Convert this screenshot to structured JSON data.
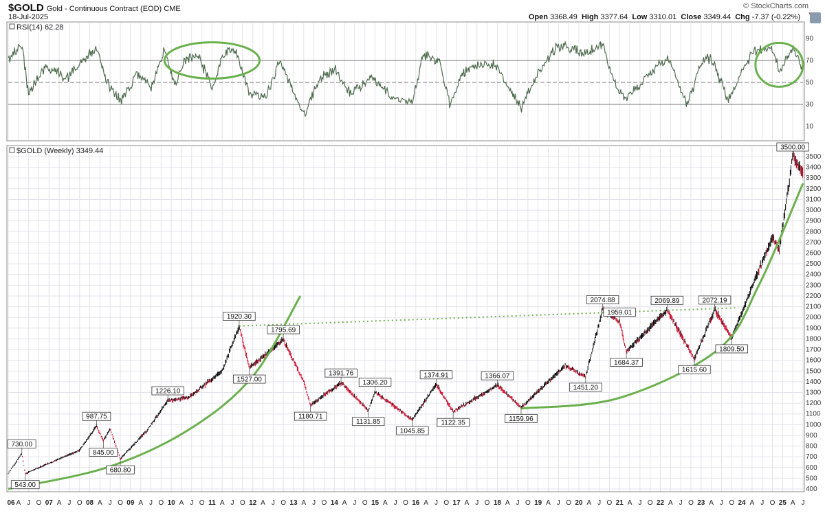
{
  "header": {
    "symbol": "$GOLD",
    "name": "Gold - Continuous Contract (EOD)",
    "exchange": "CME",
    "date": "18-Jul-2025",
    "brand": "© StockCharts.com",
    "open_label": "Open",
    "open": "3368.49",
    "high_label": "High",
    "high": "3377.64",
    "low_label": "Low",
    "low": "3310.01",
    "close_label": "Close",
    "close": "3349.44",
    "chg_label": "Chg",
    "chg": "-7.37 (-0.22%)",
    "chg_icon": "triangle-down-icon",
    "trash_icon": "trash-icon"
  },
  "rsi_panel": {
    "label": "RSI(14) 62.28",
    "overbought": 70,
    "oversold": 30,
    "midline": 50,
    "ticks": [
      90,
      70,
      50,
      30,
      10
    ]
  },
  "price_panel": {
    "label": "$GOLD (Weekly) 3349.44",
    "ticks": [
      3500,
      3400,
      3300,
      3200,
      3100,
      3000,
      2900,
      2800,
      2700,
      2600,
      2500,
      2400,
      2300,
      2200,
      2100,
      2000,
      1900,
      1800,
      1700,
      1600,
      1500,
      1400,
      1300,
      1200,
      1100,
      1000,
      900,
      800,
      700,
      600,
      500,
      400
    ]
  },
  "colors": {
    "bar": "#000000",
    "down": "#cc0022",
    "annotation": "#6ab04c",
    "rsi_line": "#4e6b4e",
    "grid": "#e3e3ec"
  },
  "chart_data": {
    "type": "line",
    "title": "$GOLD (Weekly)",
    "x_start": "2006-01",
    "x_end": "2025-07",
    "x_labels": [
      "06",
      "A",
      "J",
      "O",
      "07",
      "A",
      "J",
      "O",
      "08",
      "A",
      "J",
      "O",
      "09",
      "A",
      "J",
      "O",
      "10",
      "A",
      "J",
      "O",
      "11",
      "A",
      "J",
      "O",
      "12",
      "A",
      "J",
      "O",
      "13",
      "A",
      "J",
      "O",
      "14",
      "A",
      "J",
      "O",
      "15",
      "A",
      "J",
      "O",
      "16",
      "A",
      "J",
      "O",
      "17",
      "A",
      "J",
      "O",
      "18",
      "A",
      "J",
      "O",
      "19",
      "A",
      "J",
      "O",
      "20",
      "A",
      "J",
      "O",
      "21",
      "A",
      "J",
      "O",
      "22",
      "A",
      "J",
      "O",
      "23",
      "A",
      "J",
      "O",
      "24",
      "A",
      "J",
      "O",
      "25",
      "A",
      "J"
    ],
    "price_series": [
      {
        "date": "2006-01",
        "value": 545
      },
      {
        "date": "2006-05",
        "value": 730
      },
      {
        "date": "2006-06",
        "value": 543
      },
      {
        "date": "2007-01",
        "value": 640
      },
      {
        "date": "2007-10",
        "value": 760
      },
      {
        "date": "2008-03",
        "value": 987.75
      },
      {
        "date": "2008-05",
        "value": 845
      },
      {
        "date": "2008-07",
        "value": 960
      },
      {
        "date": "2008-10",
        "value": 680.8
      },
      {
        "date": "2009-06",
        "value": 950
      },
      {
        "date": "2009-12",
        "value": 1226.1
      },
      {
        "date": "2010-06",
        "value": 1250
      },
      {
        "date": "2011-04",
        "value": 1500
      },
      {
        "date": "2011-09",
        "value": 1920.3
      },
      {
        "date": "2011-12",
        "value": 1527
      },
      {
        "date": "2012-10",
        "value": 1795.69
      },
      {
        "date": "2013-04",
        "value": 1400
      },
      {
        "date": "2013-06",
        "value": 1180.71
      },
      {
        "date": "2014-03",
        "value": 1391.76
      },
      {
        "date": "2014-11",
        "value": 1131.85
      },
      {
        "date": "2015-01",
        "value": 1306.2
      },
      {
        "date": "2015-12",
        "value": 1045.85
      },
      {
        "date": "2016-07",
        "value": 1374.91
      },
      {
        "date": "2016-12",
        "value": 1122.35
      },
      {
        "date": "2018-01",
        "value": 1366.07
      },
      {
        "date": "2018-08",
        "value": 1159.96
      },
      {
        "date": "2019-09",
        "value": 1550
      },
      {
        "date": "2020-03",
        "value": 1451.2
      },
      {
        "date": "2020-08",
        "value": 2074.88
      },
      {
        "date": "2021-01",
        "value": 1959.01
      },
      {
        "date": "2021-03",
        "value": 1684.37
      },
      {
        "date": "2022-03",
        "value": 2069.89
      },
      {
        "date": "2022-11",
        "value": 1615.6
      },
      {
        "date": "2023-05",
        "value": 2072.19
      },
      {
        "date": "2023-10",
        "value": 1809.5
      },
      {
        "date": "2024-03",
        "value": 2200
      },
      {
        "date": "2024-10",
        "value": 2750
      },
      {
        "date": "2024-12",
        "value": 2620
      },
      {
        "date": "2025-04",
        "value": 3500
      },
      {
        "date": "2025-07",
        "value": 3349.44
      }
    ],
    "peak_labels": [
      {
        "date": "2006-05",
        "value": 730,
        "label": "730.00",
        "pos": "above"
      },
      {
        "date": "2006-06",
        "value": 543,
        "label": "543.00",
        "pos": "below"
      },
      {
        "date": "2008-03",
        "value": 987.75,
        "label": "987.75",
        "pos": "above"
      },
      {
        "date": "2008-05",
        "value": 845,
        "label": "845.00",
        "pos": "below"
      },
      {
        "date": "2008-10",
        "value": 680.8,
        "label": "680.80",
        "pos": "below"
      },
      {
        "date": "2009-12",
        "value": 1226.1,
        "label": "1226.10",
        "pos": "above"
      },
      {
        "date": "2011-09",
        "value": 1920.3,
        "label": "1920.30",
        "pos": "above"
      },
      {
        "date": "2011-12",
        "value": 1527,
        "label": "1527.00",
        "pos": "below"
      },
      {
        "date": "2012-10",
        "value": 1795.69,
        "label": "1795.69",
        "pos": "above"
      },
      {
        "date": "2013-06",
        "value": 1180.71,
        "label": "1180.71",
        "pos": "below"
      },
      {
        "date": "2014-03",
        "value": 1391.76,
        "label": "1391.76",
        "pos": "above"
      },
      {
        "date": "2014-11",
        "value": 1131.85,
        "label": "1131.85",
        "pos": "below"
      },
      {
        "date": "2015-01",
        "value": 1306.2,
        "label": "1306.20",
        "pos": "above"
      },
      {
        "date": "2015-12",
        "value": 1045.85,
        "label": "1045.85",
        "pos": "below"
      },
      {
        "date": "2016-07",
        "value": 1374.91,
        "label": "1374.91",
        "pos": "above"
      },
      {
        "date": "2016-12",
        "value": 1122.35,
        "label": "1122.35",
        "pos": "below"
      },
      {
        "date": "2018-01",
        "value": 1366.07,
        "label": "1366.07",
        "pos": "above"
      },
      {
        "date": "2018-08",
        "value": 1159.96,
        "label": "1159.96",
        "pos": "below"
      },
      {
        "date": "2020-03",
        "value": 1451.2,
        "label": "1451.20",
        "pos": "below"
      },
      {
        "date": "2020-08",
        "value": 2074.88,
        "label": "2074.88",
        "pos": "above"
      },
      {
        "date": "2021-01",
        "value": 1959.01,
        "label": "1959.01",
        "pos": "above"
      },
      {
        "date": "2021-03",
        "value": 1684.37,
        "label": "1684.37",
        "pos": "below"
      },
      {
        "date": "2022-03",
        "value": 2069.89,
        "label": "2069.89",
        "pos": "above"
      },
      {
        "date": "2022-11",
        "value": 1615.6,
        "label": "1615.60",
        "pos": "below"
      },
      {
        "date": "2023-05",
        "value": 2072.19,
        "label": "2072.19",
        "pos": "above"
      },
      {
        "date": "2023-10",
        "value": 1809.5,
        "label": "1809.50",
        "pos": "below"
      },
      {
        "date": "2025-04",
        "value": 3500,
        "label": "3500.00",
        "pos": "above"
      }
    ],
    "rsi_series": [
      {
        "date": "2006-01",
        "value": 70
      },
      {
        "date": "2006-05",
        "value": 85
      },
      {
        "date": "2006-07",
        "value": 40
      },
      {
        "date": "2006-12",
        "value": 65
      },
      {
        "date": "2007-06",
        "value": 55
      },
      {
        "date": "2007-12",
        "value": 72
      },
      {
        "date": "2008-03",
        "value": 82
      },
      {
        "date": "2008-06",
        "value": 50
      },
      {
        "date": "2008-10",
        "value": 32
      },
      {
        "date": "2009-03",
        "value": 58
      },
      {
        "date": "2009-07",
        "value": 44
      },
      {
        "date": "2009-11",
        "value": 80
      },
      {
        "date": "2010-02",
        "value": 48
      },
      {
        "date": "2010-05",
        "value": 70
      },
      {
        "date": "2010-09",
        "value": 76
      },
      {
        "date": "2011-01",
        "value": 44
      },
      {
        "date": "2011-04",
        "value": 72
      },
      {
        "date": "2011-08",
        "value": 82
      },
      {
        "date": "2011-12",
        "value": 40
      },
      {
        "date": "2012-05",
        "value": 38
      },
      {
        "date": "2012-09",
        "value": 70
      },
      {
        "date": "2013-01",
        "value": 42
      },
      {
        "date": "2013-04",
        "value": 20
      },
      {
        "date": "2013-09",
        "value": 55
      },
      {
        "date": "2014-01",
        "value": 62
      },
      {
        "date": "2014-06",
        "value": 40
      },
      {
        "date": "2014-12",
        "value": 55
      },
      {
        "date": "2015-06",
        "value": 36
      },
      {
        "date": "2015-12",
        "value": 32
      },
      {
        "date": "2016-03",
        "value": 75
      },
      {
        "date": "2016-08",
        "value": 70
      },
      {
        "date": "2016-11",
        "value": 30
      },
      {
        "date": "2017-03",
        "value": 60
      },
      {
        "date": "2017-09",
        "value": 68
      },
      {
        "date": "2018-01",
        "value": 64
      },
      {
        "date": "2018-08",
        "value": 25
      },
      {
        "date": "2019-01",
        "value": 60
      },
      {
        "date": "2019-06",
        "value": 80
      },
      {
        "date": "2019-09",
        "value": 84
      },
      {
        "date": "2020-02",
        "value": 75
      },
      {
        "date": "2020-08",
        "value": 85
      },
      {
        "date": "2020-12",
        "value": 45
      },
      {
        "date": "2021-03",
        "value": 35
      },
      {
        "date": "2021-08",
        "value": 52
      },
      {
        "date": "2022-03",
        "value": 74
      },
      {
        "date": "2022-09",
        "value": 30
      },
      {
        "date": "2023-01",
        "value": 70
      },
      {
        "date": "2023-04",
        "value": 72
      },
      {
        "date": "2023-09",
        "value": 34
      },
      {
        "date": "2024-01",
        "value": 60
      },
      {
        "date": "2024-04",
        "value": 78
      },
      {
        "date": "2024-10",
        "value": 82
      },
      {
        "date": "2024-12",
        "value": 58
      },
      {
        "date": "2025-04",
        "value": 82
      },
      {
        "date": "2025-07",
        "value": 62
      }
    ],
    "annotations": {
      "support_curve_1": [
        {
          "date": "2006-01",
          "value": 400
        },
        {
          "date": "2008-06",
          "value": 600
        },
        {
          "date": "2010-06",
          "value": 950
        },
        {
          "date": "2012-01",
          "value": 1450
        },
        {
          "date": "2013-03",
          "value": 2200
        }
      ],
      "support_curve_2": [
        {
          "date": "2018-08",
          "value": 1150
        },
        {
          "date": "2021-01",
          "value": 1250
        },
        {
          "date": "2023-06",
          "value": 1700
        },
        {
          "date": "2024-06",
          "value": 2300
        },
        {
          "date": "2025-07",
          "value": 3250
        }
      ],
      "resistance_line": [
        {
          "date": "2011-09",
          "value": 1920
        },
        {
          "date": "2023-12",
          "value": 2090
        }
      ],
      "rsi_ellipses": [
        {
          "center": "2011-01",
          "rsi": 70,
          "width_months": 28,
          "height_rsi": 33
        },
        {
          "center": "2024-12",
          "rsi": 66,
          "width_months": 14,
          "height_rsi": 40
        }
      ]
    }
  }
}
